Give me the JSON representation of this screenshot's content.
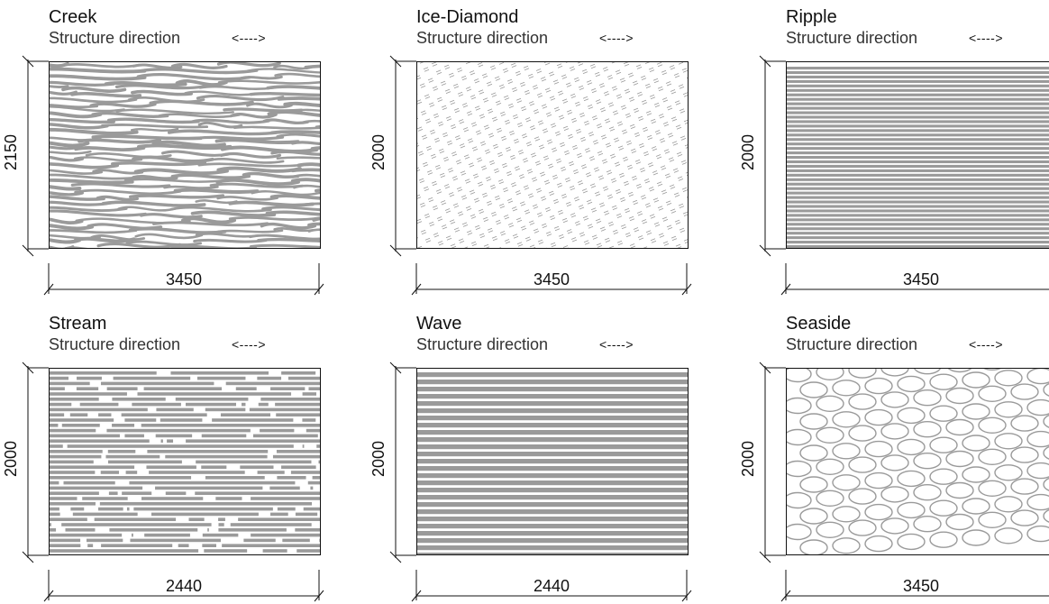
{
  "direction_label": "Structure direction",
  "direction_arrow": "<---->",
  "panels": [
    {
      "title": "Creek",
      "pattern": "creek",
      "height_dim": "2150",
      "width_dim": "3450"
    },
    {
      "title": "Ice-Diamond",
      "pattern": "ice",
      "height_dim": "2000",
      "width_dim": "3450"
    },
    {
      "title": "Ripple",
      "pattern": "ripple",
      "height_dim": "2000",
      "width_dim": "3450"
    },
    {
      "title": "Stream",
      "pattern": "stream",
      "height_dim": "2000",
      "width_dim": "2440"
    },
    {
      "title": "Wave",
      "pattern": "wave",
      "height_dim": "2000",
      "width_dim": "2440"
    },
    {
      "title": "Seaside",
      "pattern": "seaside",
      "height_dim": "2000",
      "width_dim": "3450"
    }
  ],
  "colors": {
    "pattern_gray": "#9a9a9a",
    "line": "#111111"
  }
}
